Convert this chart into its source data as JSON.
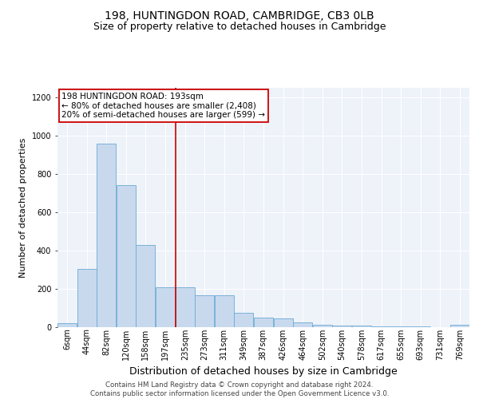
{
  "title": "198, HUNTINGDON ROAD, CAMBRIDGE, CB3 0LB",
  "subtitle": "Size of property relative to detached houses in Cambridge",
  "xlabel": "Distribution of detached houses by size in Cambridge",
  "ylabel": "Number of detached properties",
  "bar_color": "#c8d9ee",
  "bar_edge_color": "#6aaad4",
  "bg_color": "#eef2f9",
  "annotation_text_line1": "198 HUNTINGDON ROAD: 193sqm",
  "annotation_text_line2": "← 80% of detached houses are smaller (2,408)",
  "annotation_text_line3": "20% of semi-detached houses are larger (599) →",
  "annotation_box_color": "#ffffff",
  "annotation_border_color": "#cc0000",
  "vline_color": "#cc0000",
  "footer_text": "Contains HM Land Registry data © Crown copyright and database right 2024.\nContains public sector information licensed under the Open Government Licence v3.0.",
  "categories": [
    "6sqm",
    "44sqm",
    "82sqm",
    "120sqm",
    "158sqm",
    "197sqm",
    "235sqm",
    "273sqm",
    "311sqm",
    "349sqm",
    "387sqm",
    "426sqm",
    "464sqm",
    "502sqm",
    "540sqm",
    "578sqm",
    "617sqm",
    "655sqm",
    "693sqm",
    "731sqm",
    "769sqm"
  ],
  "values": [
    20,
    305,
    960,
    740,
    430,
    210,
    210,
    165,
    165,
    75,
    48,
    45,
    27,
    12,
    8,
    8,
    4,
    4,
    4,
    2,
    13
  ],
  "bin_width": 38,
  "bin_starts": [
    6,
    44,
    82,
    120,
    158,
    197,
    235,
    273,
    311,
    349,
    387,
    426,
    464,
    502,
    540,
    578,
    617,
    655,
    693,
    731,
    769
  ],
  "vline_x": 197,
  "ylim": [
    0,
    1250
  ],
  "yticks": [
    0,
    200,
    400,
    600,
    800,
    1000,
    1200
  ],
  "title_fontsize": 10,
  "subtitle_fontsize": 9,
  "xlabel_fontsize": 9,
  "ylabel_fontsize": 8,
  "tick_fontsize": 7,
  "annot_fontsize": 7.5
}
